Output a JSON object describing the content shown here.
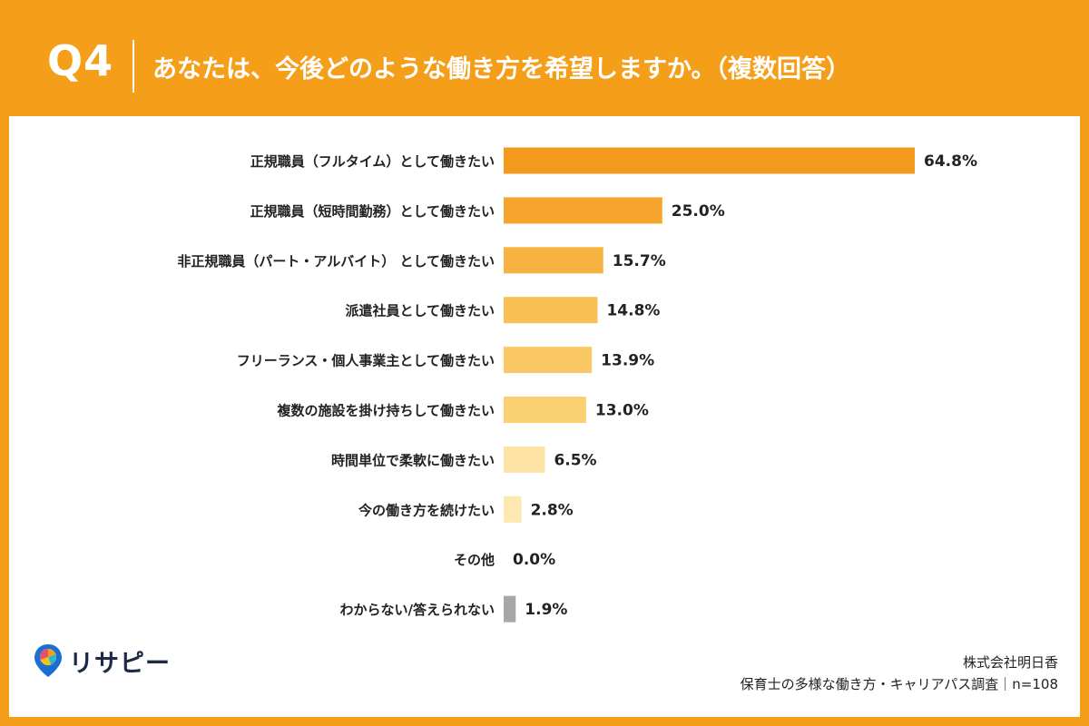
{
  "header": {
    "question_number": "Q4",
    "question_text": "あなたは、今後どのような働き方を希望しますか。（複数回答）"
  },
  "brand": {
    "logo_text": "リサピー"
  },
  "source": {
    "company": "株式会社明日香",
    "survey": "保育士の多様な働き方・キャリアパス調査｜n=108"
  },
  "colors": {
    "frame": "#F59E1A",
    "bar_gradient": [
      "#F39A1C",
      "#F5A42D",
      "#F7B342",
      "#F9BF55",
      "#FAC965",
      "#FBD071",
      "#FDE4A6",
      "#FDE8B0",
      "#FDEBBC",
      "#A7A6A8"
    ]
  },
  "chart_data": {
    "type": "bar",
    "orientation": "horizontal",
    "categories": [
      "正規職員（フルタイム）として働きたい",
      "正規職員（短時間勤務）として働きたい",
      "非正規職員（パート・アルバイト） として働きたい",
      "派遣社員として働きたい",
      "フリーランス・個人事業主として働きたい",
      "複数の施設を掛け持ちして働きたい",
      "時間単位で柔軟に働きたい",
      "今の働き方を続けたい",
      "その他",
      "わからない/答えられない"
    ],
    "values": [
      64.8,
      25.0,
      15.7,
      14.8,
      13.9,
      13.0,
      6.5,
      2.8,
      0.0,
      1.9
    ],
    "value_labels": [
      "64.8%",
      "25.0%",
      "15.7%",
      "14.8%",
      "13.9%",
      "13.0%",
      "6.5%",
      "2.8%",
      "0.0%",
      "1.9%"
    ],
    "xlim": [
      0,
      70
    ],
    "grid": false,
    "legend": "none"
  }
}
